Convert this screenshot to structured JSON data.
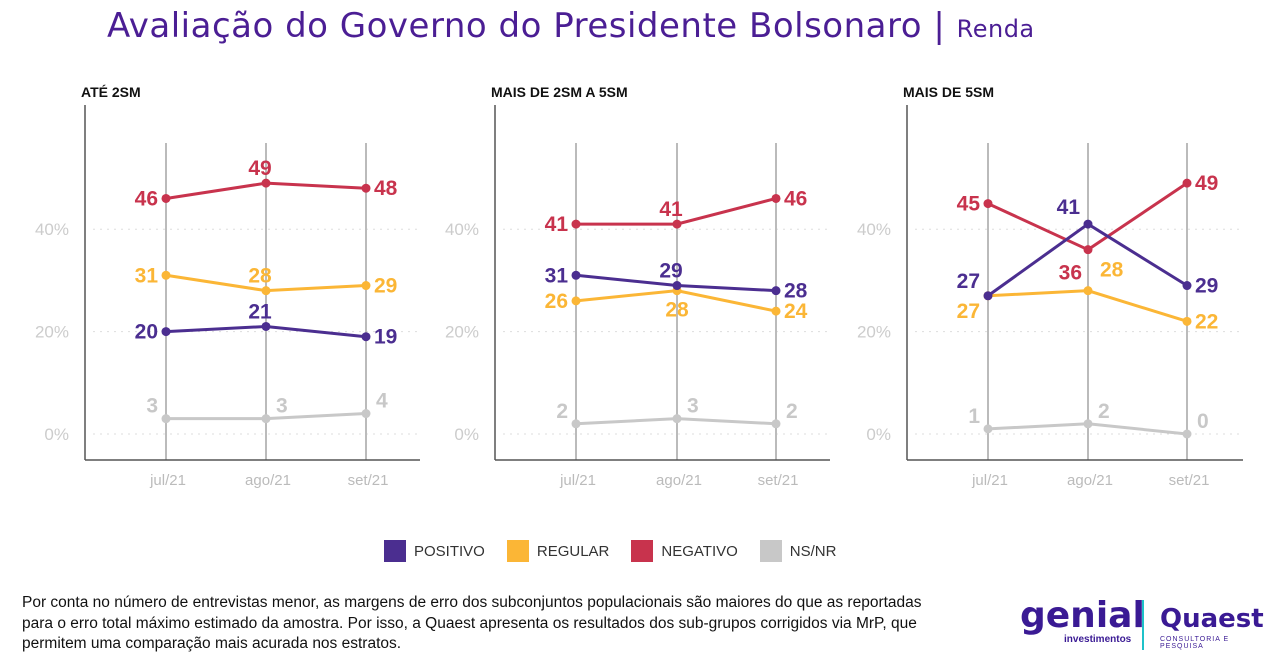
{
  "title": {
    "main": "Avaliação do Governo do Presidente Bolsonaro",
    "separator": "|",
    "sub": "Renda"
  },
  "legend": [
    {
      "label": "POSITIVO",
      "color": "#4b2e90"
    },
    {
      "label": "REGULAR",
      "color": "#fbb636"
    },
    {
      "label": "NEGATIVO",
      "color": "#c8334d"
    },
    {
      "label": "NS/NR",
      "color": "#c8c8c8"
    }
  ],
  "chart_data": [
    {
      "type": "line",
      "title": "ATÉ 2SM",
      "categories": [
        "jul/21",
        "ago/21",
        "set/21"
      ],
      "yticks": [
        "0%",
        "20%",
        "40%"
      ],
      "ylim": [
        0,
        50
      ],
      "series": [
        {
          "name": "POSITIVO",
          "values": [
            20,
            21,
            19
          ]
        },
        {
          "name": "REGULAR",
          "values": [
            31,
            28,
            29
          ]
        },
        {
          "name": "NEGATIVO",
          "values": [
            46,
            49,
            48
          ]
        },
        {
          "name": "NS/NR",
          "values": [
            3,
            3,
            4
          ]
        }
      ]
    },
    {
      "type": "line",
      "title": "MAIS DE 2SM A 5SM",
      "categories": [
        "jul/21",
        "ago/21",
        "set/21"
      ],
      "yticks": [
        "0%",
        "20%",
        "40%"
      ],
      "ylim": [
        0,
        50
      ],
      "series": [
        {
          "name": "POSITIVO",
          "values": [
            31,
            29,
            28
          ]
        },
        {
          "name": "REGULAR",
          "values": [
            26,
            28,
            24
          ]
        },
        {
          "name": "NEGATIVO",
          "values": [
            41,
            41,
            46
          ]
        },
        {
          "name": "NS/NR",
          "values": [
            2,
            3,
            2
          ]
        }
      ]
    },
    {
      "type": "line",
      "title": "MAIS DE 5SM",
      "categories": [
        "jul/21",
        "ago/21",
        "set/21"
      ],
      "yticks": [
        "0%",
        "20%",
        "40%"
      ],
      "ylim": [
        0,
        50
      ],
      "series": [
        {
          "name": "POSITIVO",
          "values": [
            27,
            41,
            29
          ]
        },
        {
          "name": "REGULAR",
          "values": [
            27,
            28,
            22
          ]
        },
        {
          "name": "NEGATIVO",
          "values": [
            45,
            36,
            49
          ]
        },
        {
          "name": "NS/NR",
          "values": [
            1,
            2,
            0
          ]
        }
      ]
    }
  ],
  "note": "Por conta no número de entrevistas menor, as margens de erro dos subconjuntos populacionais são maiores do que as reportadas para o erro total máximo estimado da amostra. Por isso, a Quaest apresenta os resultados dos sub-grupos corrigidos via MrP, que permitem uma comparação mais acurada nos estratos.",
  "logos": {
    "genial": "genial",
    "genial_sub": "investimentos",
    "quaest": "Quaest",
    "quaest_sub": "CONSULTORIA E PESQUISA"
  }
}
